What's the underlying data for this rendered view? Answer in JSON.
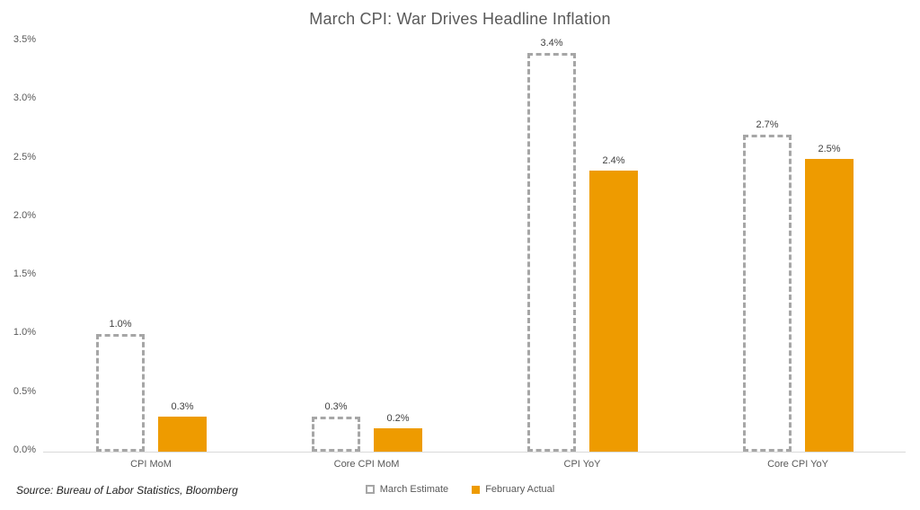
{
  "title": "March CPI: War Drives Headline Inflation",
  "source": "Source: Bureau of Labor Statistics, Bloomberg",
  "colors": {
    "actual_fill": "#ee9b00",
    "estimate_border": "#a6a6a6",
    "axis_line": "#d9d9d9",
    "title_text": "#595959",
    "value_label_text": "#404040",
    "tick_text": "#595959"
  },
  "chart_data": {
    "type": "bar",
    "title": "March CPI: War Drives Headline Inflation",
    "categories": [
      "CPI MoM",
      "Core CPI MoM",
      "CPI YoY",
      "Core CPI YoY"
    ],
    "series": [
      {
        "name": "March Estimate",
        "style": "dashed-outline",
        "values": [
          1.0,
          0.3,
          3.4,
          2.7
        ],
        "labels": [
          "1.0%",
          "0.3%",
          "3.4%",
          "2.7%"
        ]
      },
      {
        "name": "February Actual",
        "style": "solid-orange",
        "values": [
          0.3,
          0.2,
          2.4,
          2.5
        ],
        "labels": [
          "0.3%",
          "0.2%",
          "2.4%",
          "2.5%"
        ]
      }
    ],
    "xlabel": "",
    "ylabel": "",
    "ylim": [
      0,
      3.5
    ],
    "ytick_step": 0.5,
    "ytick_labels": [
      "0.0%",
      "0.5%",
      "1.0%",
      "1.5%",
      "2.0%",
      "2.5%",
      "3.0%",
      "3.5%"
    ],
    "grid": false,
    "legend_position": "bottom-center"
  }
}
